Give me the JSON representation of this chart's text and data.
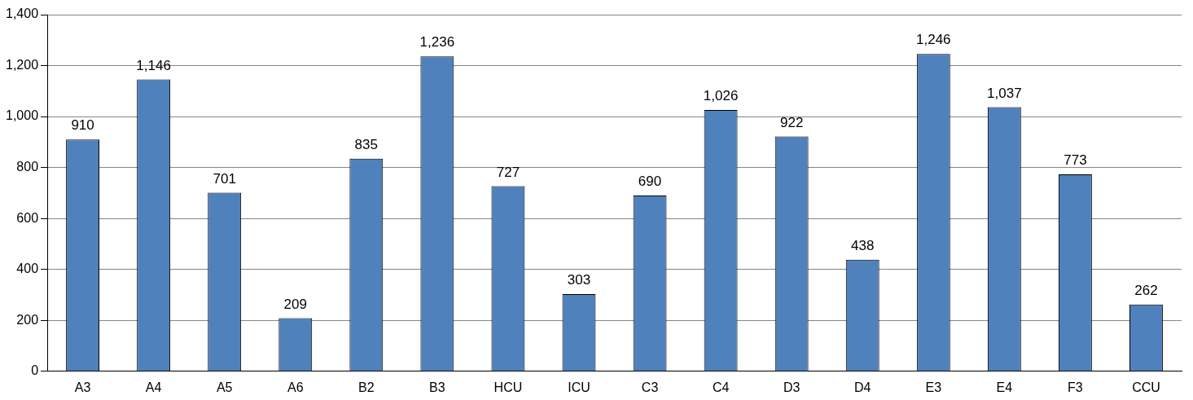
{
  "chart_data": {
    "type": "bar",
    "categories": [
      "A3",
      "A4",
      "A5",
      "A6",
      "B2",
      "B3",
      "HCU",
      "ICU",
      "C3",
      "C4",
      "D3",
      "D4",
      "E3",
      "E4",
      "F3",
      "CCU"
    ],
    "values": [
      910,
      1146,
      701,
      209,
      835,
      1236,
      727,
      303,
      690,
      1026,
      922,
      438,
      1246,
      1037,
      773,
      262
    ],
    "value_labels": [
      "910",
      "1,146",
      "701",
      "209",
      "835",
      "1,236",
      "727",
      "303",
      "690",
      "1,026",
      "922",
      "438",
      "1,246",
      "1,037",
      "773",
      "262"
    ],
    "color": "#4f81bd",
    "ylim": [
      0,
      1400
    ],
    "yticks": [
      0,
      200,
      400,
      600,
      800,
      {
        "value": 1000,
        "label": "1,000"
      },
      {
        "value": 1200,
        "label": "1,200"
      },
      {
        "value": 1400,
        "label": "1,400"
      }
    ],
    "grid": "y",
    "legend": false
  }
}
